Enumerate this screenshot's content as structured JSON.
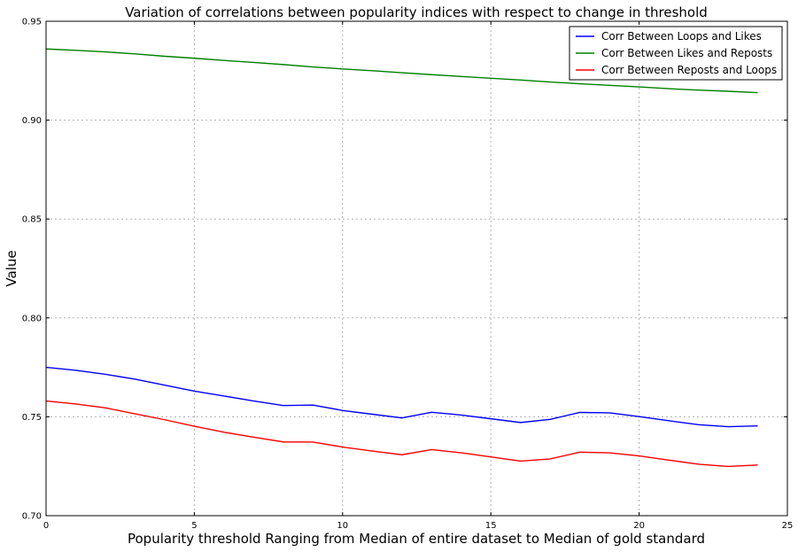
{
  "chart_data": {
    "type": "line",
    "title": "Variation of correlations between popularity indices with respect to change in threshold",
    "xlabel": "Popularity threshold Ranging from Median of entire dataset to Median of gold standard",
    "ylabel": "Value",
    "xlim": [
      0,
      25
    ],
    "ylim": [
      0.7,
      0.95
    ],
    "xticks": [
      0,
      5,
      10,
      15,
      20,
      25
    ],
    "xtick_labels": [
      "0",
      "5",
      "10",
      "15",
      "20",
      "25"
    ],
    "yticks": [
      0.7,
      0.75,
      0.8,
      0.85,
      0.9,
      0.95
    ],
    "ytick_labels": [
      "0.70",
      "0.75",
      "0.80",
      "0.85",
      "0.90",
      "0.95"
    ],
    "grid": true,
    "legend_position": "top-right",
    "x": [
      0,
      1,
      2,
      3,
      4,
      5,
      6,
      7,
      8,
      9,
      10,
      11,
      12,
      13,
      14,
      15,
      16,
      17,
      18,
      19,
      20,
      21,
      22,
      23,
      24
    ],
    "series": [
      {
        "name": "Corr Between Loops and Likes",
        "color": "#0000ff",
        "values": [
          0.775,
          0.7735,
          0.7715,
          0.769,
          0.766,
          0.763,
          0.7605,
          0.758,
          0.7557,
          0.7559,
          0.7532,
          0.7513,
          0.7494,
          0.7523,
          0.7509,
          0.749,
          0.7471,
          0.7487,
          0.7522,
          0.752,
          0.7501,
          0.748,
          0.746,
          0.745,
          0.7454
        ]
      },
      {
        "name": "Corr Between Likes and Reposts",
        "color": "#008000",
        "values": [
          0.936,
          0.9353,
          0.9345,
          0.9335,
          0.9323,
          0.9313,
          0.9302,
          0.9292,
          0.9281,
          0.9269,
          0.9259,
          0.925,
          0.924,
          0.923,
          0.9221,
          0.9212,
          0.9203,
          0.9193,
          0.9184,
          0.9176,
          0.9168,
          0.9159,
          0.9152,
          0.9146,
          0.9139
        ]
      },
      {
        "name": "Corr Between Reposts and Loops",
        "color": "#ff0000",
        "values": [
          0.758,
          0.7565,
          0.7545,
          0.7515,
          0.7485,
          0.7452,
          0.7422,
          0.7397,
          0.7373,
          0.7372,
          0.7347,
          0.7327,
          0.7308,
          0.7334,
          0.7318,
          0.7297,
          0.7276,
          0.7287,
          0.7321,
          0.7318,
          0.7302,
          0.7281,
          0.726,
          0.7249,
          0.7256
        ]
      }
    ]
  }
}
